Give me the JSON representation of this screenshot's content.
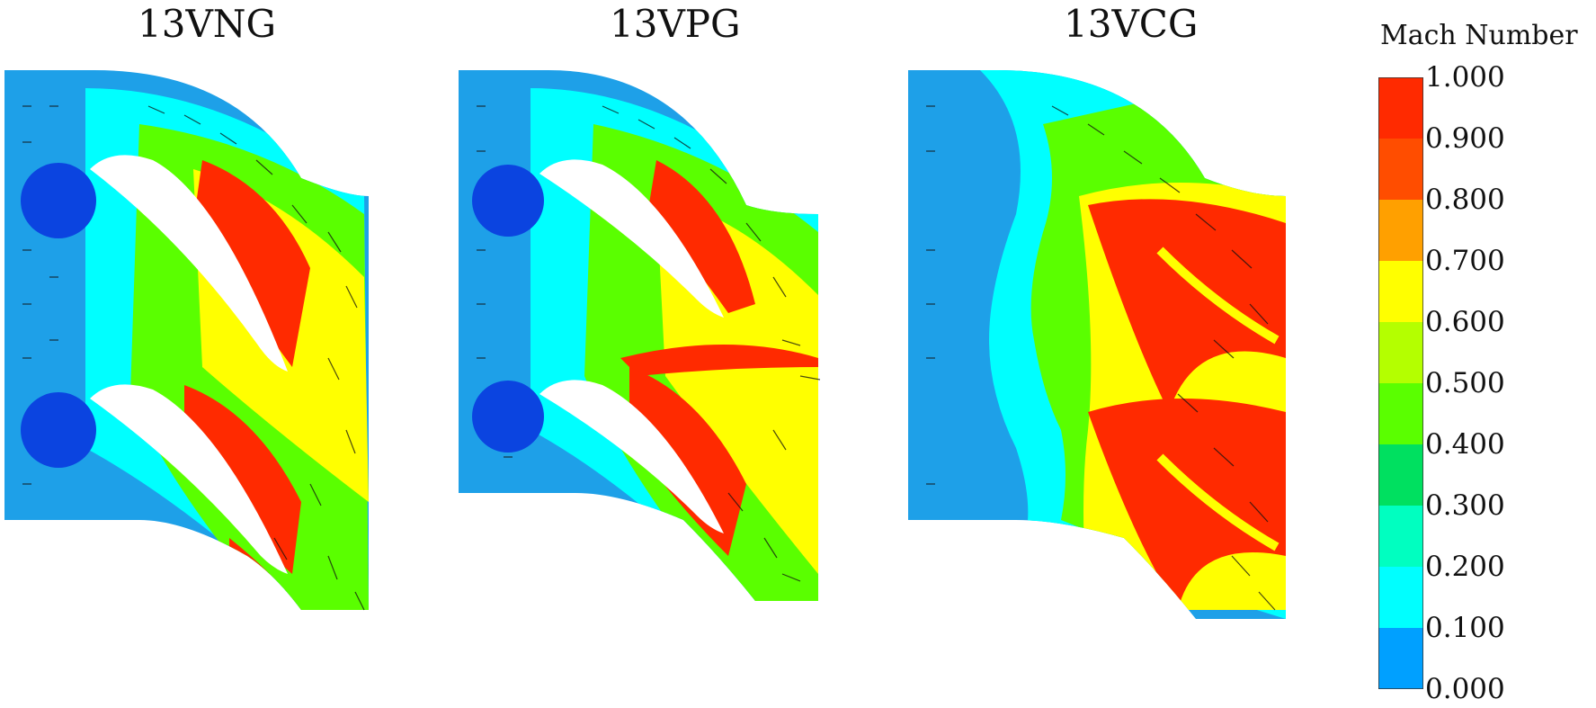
{
  "panels": [
    {
      "title": "13VNG"
    },
    {
      "title": "13VPG"
    },
    {
      "title": "13VCG"
    }
  ],
  "colorbar": {
    "title": "Mach Number",
    "ticks": [
      "1.000",
      "0.900",
      "0.800",
      "0.700",
      "0.600",
      "0.500",
      "0.400",
      "0.300",
      "0.200",
      "0.100",
      "0.000"
    ],
    "colors": [
      "#ff2a00",
      "#ff4d00",
      "#ffa000",
      "#ffff00",
      "#b4ff00",
      "#5aff00",
      "#00e060",
      "#00ffc0",
      "#00ffff",
      "#00a0ff",
      "#0040ff"
    ]
  }
}
